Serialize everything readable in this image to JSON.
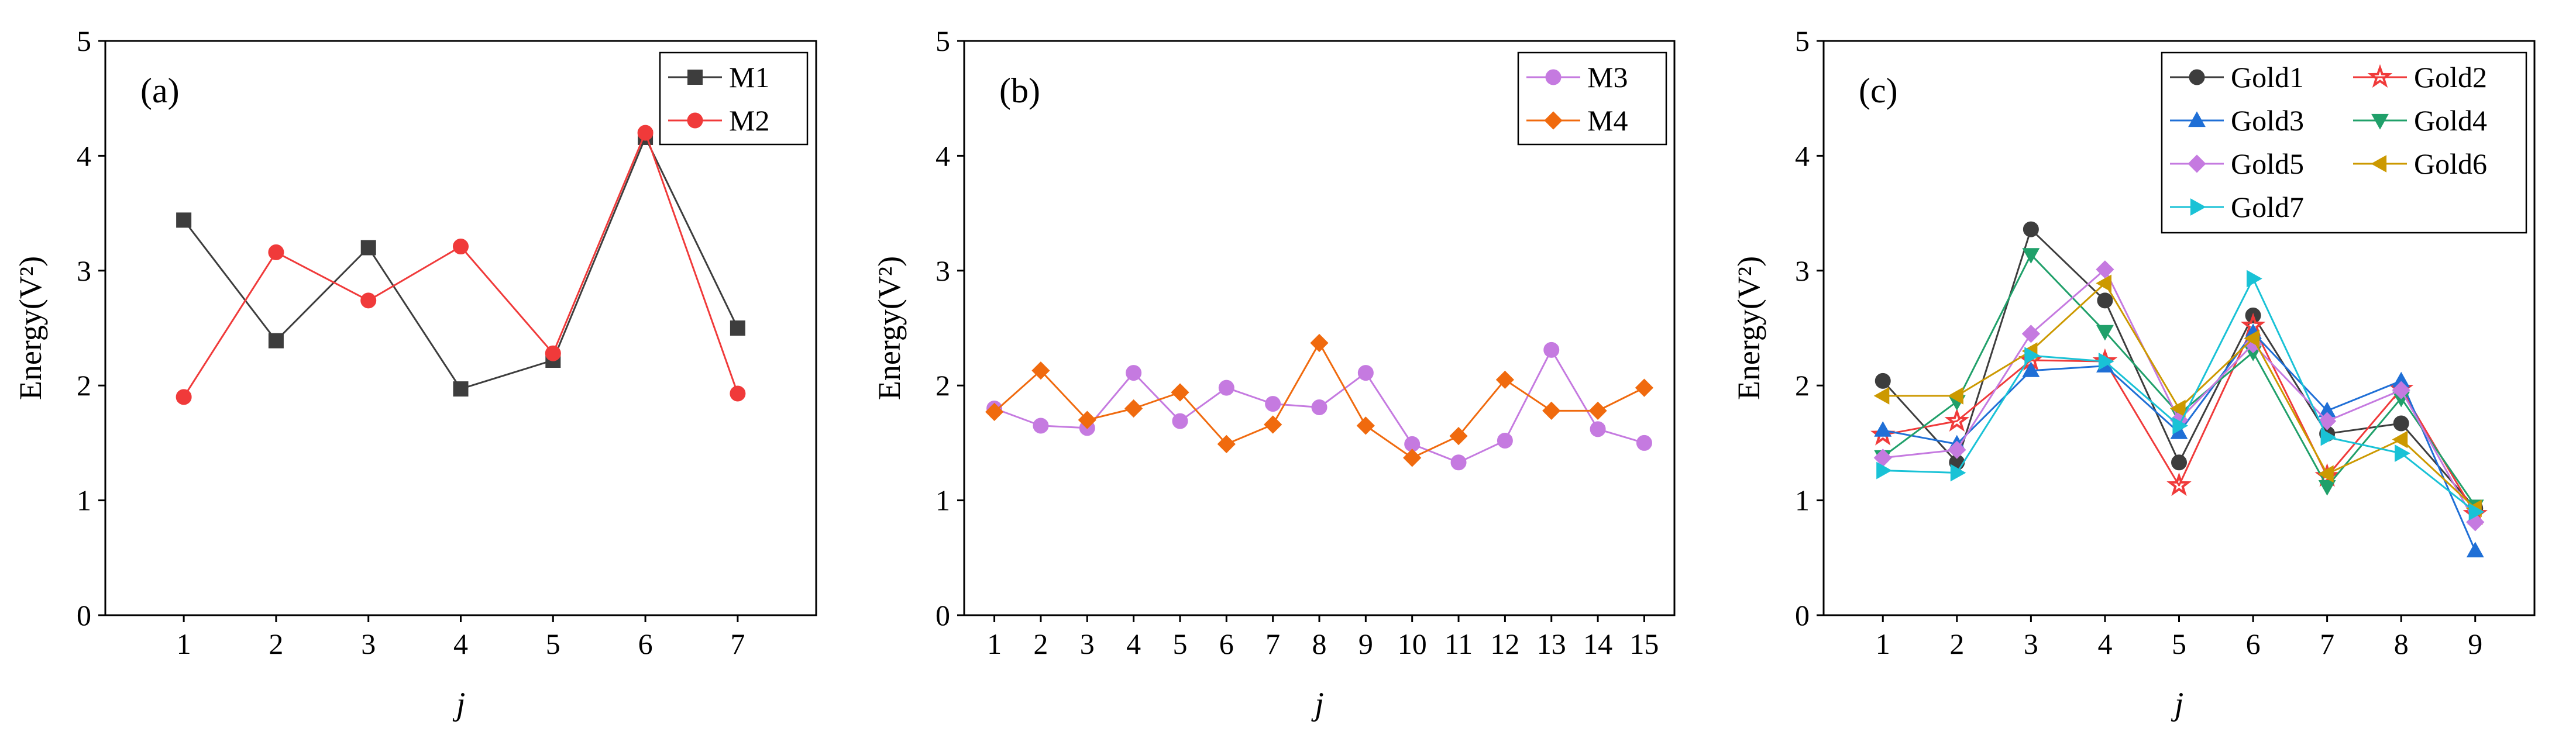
{
  "chart_data": [
    {
      "type": "line",
      "panel_label": "(a)",
      "xlabel": "j",
      "ylabel": "Energy(V²)",
      "x": [
        1,
        2,
        3,
        4,
        5,
        6,
        7
      ],
      "xlim": [
        0.15,
        7.85
      ],
      "ylim": [
        0,
        5
      ],
      "yticks": [
        0,
        1,
        2,
        3,
        4,
        5
      ],
      "legend_position": "top-right",
      "legend_columns": 1,
      "series": [
        {
          "name": "M1",
          "color": "#3d3d3d",
          "marker": "square",
          "values": [
            3.44,
            2.39,
            3.2,
            1.97,
            2.22,
            4.16,
            2.5
          ]
        },
        {
          "name": "M2",
          "color": "#f03a3a",
          "marker": "circle",
          "values": [
            1.9,
            3.16,
            2.74,
            3.21,
            2.28,
            4.2,
            1.93
          ]
        }
      ]
    },
    {
      "type": "line",
      "panel_label": "(b)",
      "xlabel": "j",
      "ylabel": "Energy(V²)",
      "x": [
        1,
        2,
        3,
        4,
        5,
        6,
        7,
        8,
        9,
        10,
        11,
        12,
        13,
        14,
        15
      ],
      "xlim": [
        0.35,
        15.65
      ],
      "ylim": [
        0,
        5
      ],
      "yticks": [
        0,
        1,
        2,
        3,
        4,
        5
      ],
      "legend_position": "top-right",
      "legend_columns": 1,
      "series": [
        {
          "name": "M3",
          "color": "#c57ae0",
          "marker": "circle",
          "values": [
            1.8,
            1.65,
            1.63,
            2.11,
            1.69,
            1.98,
            1.84,
            1.81,
            2.11,
            1.49,
            1.33,
            1.52,
            2.31,
            1.62,
            1.5
          ]
        },
        {
          "name": "M4",
          "color": "#f06a0e",
          "marker": "diamond",
          "values": [
            1.77,
            2.13,
            1.7,
            1.8,
            1.94,
            1.49,
            1.66,
            2.37,
            1.65,
            1.37,
            1.56,
            2.05,
            1.78,
            1.78,
            1.98
          ]
        }
      ]
    },
    {
      "type": "line",
      "panel_label": "(c)",
      "xlabel": "j",
      "ylabel": "Energy(V²)",
      "x": [
        1,
        2,
        3,
        4,
        5,
        6,
        7,
        8,
        9
      ],
      "xlim": [
        0.2,
        9.8
      ],
      "ylim": [
        0,
        5
      ],
      "yticks": [
        0,
        1,
        2,
        3,
        4,
        5
      ],
      "legend_position": "top-right",
      "legend_columns": 2,
      "series": [
        {
          "name": "Gold1",
          "color": "#3d3d3d",
          "marker": "circle",
          "values": [
            2.04,
            1.33,
            3.36,
            2.74,
            1.33,
            2.61,
            1.58,
            1.67,
            0.93
          ]
        },
        {
          "name": "Gold2",
          "color": "#f03a3a",
          "marker": "star",
          "values": [
            1.57,
            1.69,
            2.22,
            2.21,
            1.13,
            2.52,
            1.21,
            1.97,
            0.88
          ]
        },
        {
          "name": "Gold3",
          "color": "#1f6fd6",
          "marker": "triangle-up",
          "values": [
            1.61,
            1.49,
            2.13,
            2.17,
            1.59,
            2.46,
            1.78,
            2.04,
            0.56
          ]
        },
        {
          "name": "Gold4",
          "color": "#20a06a",
          "marker": "triangle-down",
          "values": [
            1.38,
            1.86,
            3.14,
            2.47,
            1.75,
            2.29,
            1.12,
            1.89,
            0.95
          ]
        },
        {
          "name": "Gold5",
          "color": "#c57ae0",
          "marker": "diamond",
          "values": [
            1.37,
            1.44,
            2.45,
            3.01,
            1.7,
            2.36,
            1.69,
            1.96,
            0.81
          ]
        },
        {
          "name": "Gold6",
          "color": "#cc9900",
          "marker": "triangle-left",
          "values": [
            1.91,
            1.91,
            2.3,
            2.89,
            1.8,
            2.41,
            1.23,
            1.53,
            0.93
          ]
        },
        {
          "name": "Gold7",
          "color": "#19c2d6",
          "marker": "triangle-right",
          "values": [
            1.26,
            1.24,
            2.26,
            2.21,
            1.65,
            2.93,
            1.55,
            1.41,
            0.9
          ]
        }
      ]
    }
  ]
}
